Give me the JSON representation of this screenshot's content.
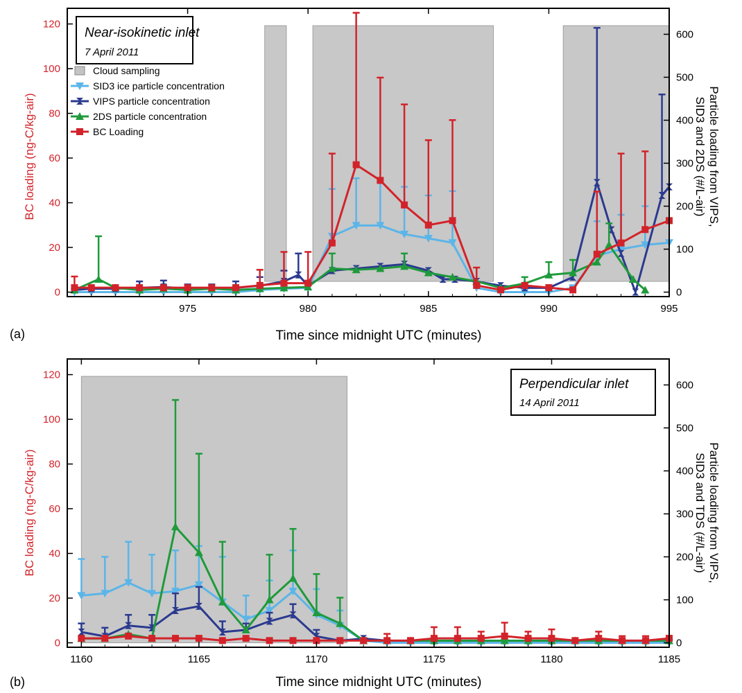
{
  "chart_data": [
    {
      "type": "line",
      "panel_label": "(a)",
      "annotation": {
        "line1": "Near-isokinetic inlet",
        "line2": "7 April 2011"
      },
      "xlabel": "Time since midnight UTC (minutes)",
      "ylabel": "BC loading (ng-C/kg-air)",
      "ylabel_right_line1": "Particle loading from VIPS,",
      "ylabel_right_line2": "SID3 and 2DS (#/L-air)",
      "xlim": [
        970,
        995
      ],
      "ylim": [
        -2,
        127
      ],
      "ylim_right": [
        -10.4,
        660.4
      ],
      "x_ticks": [
        975,
        980,
        985,
        990,
        995
      ],
      "y_ticks": [
        0,
        20,
        40,
        60,
        80,
        100,
        120
      ],
      "y_ticks_right": [
        0,
        100,
        200,
        300,
        400,
        500,
        600
      ],
      "legend": [
        {
          "label": "Cloud sampling",
          "color": "#c4c4c4",
          "marker": "rect"
        },
        {
          "label": "SID3 ice particle concentration",
          "color": "#5bb5e8",
          "marker": "tri-down"
        },
        {
          "label": "VIPS particle concentration",
          "color": "#2b3a8f",
          "marker": "bowtie"
        },
        {
          "label": "2DS particle concentration",
          "color": "#1f9a3b",
          "marker": "tri-up"
        },
        {
          "label": "BC Loading",
          "color": "#d2232a",
          "marker": "square"
        }
      ],
      "cloud_spans": [
        [
          978.2,
          979.1
        ],
        [
          980.2,
          987.7
        ],
        [
          990.6,
          995
        ]
      ],
      "series": [
        {
          "name": "SID3 ice particle concentration",
          "axis": "right",
          "color": "#5bb5e8",
          "marker": "tri-down",
          "x": [
            970.3,
            971,
            972,
            973,
            974,
            975,
            976,
            977,
            978,
            979,
            980,
            981,
            982,
            983,
            984,
            985,
            986,
            987,
            988,
            989,
            990,
            991,
            992,
            993,
            994,
            995
          ],
          "y": [
            0,
            0,
            0,
            0,
            0,
            0,
            0,
            0,
            5,
            8,
            10,
            130,
            155,
            155,
            135,
            125,
            115,
            10,
            0,
            0,
            0,
            10,
            85,
            100,
            110,
            115
          ],
          "err": [
            0,
            0,
            0,
            0,
            0,
            0,
            0,
            0,
            0,
            0,
            0,
            110,
            110,
            110,
            110,
            100,
            120,
            0,
            0,
            0,
            0,
            0,
            80,
            80,
            90,
            0
          ]
        },
        {
          "name": "VIPS particle concentration",
          "axis": "right",
          "color": "#2b3a8f",
          "marker": "bowtie",
          "x": [
            970.3,
            971,
            972,
            973,
            974,
            975,
            976,
            977,
            978,
            979,
            979.6,
            980,
            981,
            982,
            983,
            984,
            985,
            985.6,
            986.1,
            987,
            988,
            989,
            990,
            991,
            992,
            992.6,
            993,
            993.6,
            994.7,
            995
          ],
          "y": [
            5,
            8,
            8,
            10,
            12,
            8,
            8,
            10,
            15,
            25,
            40,
            15,
            50,
            55,
            60,
            65,
            50,
            30,
            30,
            25,
            15,
            10,
            10,
            35,
            255,
            145,
            90,
            0,
            225,
            245
          ],
          "err": [
            0,
            0,
            0,
            15,
            15,
            10,
            10,
            15,
            20,
            25,
            50,
            0,
            0,
            0,
            0,
            0,
            0,
            0,
            0,
            0,
            0,
            0,
            0,
            0,
            360,
            0,
            0,
            0,
            235,
            0
          ]
        },
        {
          "name": "2DS particle concentration",
          "axis": "right",
          "color": "#1f9a3b",
          "marker": "tri-up",
          "x": [
            970.3,
            971.3,
            972,
            973,
            974,
            975,
            976,
            977,
            978,
            979,
            980,
            981,
            982,
            983,
            984,
            985,
            986,
            987,
            988,
            989,
            990,
            991,
            992,
            992.5,
            993.5,
            994
          ],
          "y": [
            5,
            30,
            10,
            5,
            8,
            5,
            8,
            5,
            8,
            10,
            12,
            55,
            52,
            55,
            60,
            45,
            35,
            25,
            10,
            20,
            40,
            45,
            70,
            110,
            30,
            5
          ],
          "err": [
            0,
            100,
            0,
            0,
            0,
            0,
            0,
            0,
            0,
            0,
            0,
            35,
            0,
            0,
            30,
            0,
            0,
            0,
            0,
            15,
            30,
            30,
            0,
            50,
            0,
            0
          ]
        },
        {
          "name": "BC Loading",
          "axis": "left",
          "color": "#d2232a",
          "marker": "square",
          "x": [
            970.3,
            971,
            972,
            973,
            974,
            975,
            976,
            977,
            978,
            979,
            980,
            981,
            982,
            983,
            984,
            985,
            986,
            987,
            988,
            989,
            990,
            991,
            992,
            993,
            994,
            995
          ],
          "y": [
            2,
            2,
            2,
            2,
            2,
            2,
            2,
            2,
            3,
            4,
            4,
            22,
            57,
            50,
            39,
            30,
            32,
            3,
            1,
            3,
            2,
            1,
            17,
            22,
            28,
            32
          ],
          "err": [
            5,
            0,
            0,
            0,
            0,
            0,
            0,
            0,
            7,
            14,
            14,
            40,
            68,
            46,
            45,
            38,
            45,
            8,
            0,
            0,
            0,
            0,
            28,
            40,
            35,
            0
          ]
        }
      ]
    },
    {
      "type": "line",
      "panel_label": "(b)",
      "annotation": {
        "line1": "Perpendicular inlet",
        "line2": "14 April 2011"
      },
      "xlabel": "Time since midnight UTC (minutes)",
      "ylabel": "BC loading (ng-C/kg-air)",
      "ylabel_right_line1": "Particle loading from VIPS,",
      "ylabel_right_line2": "SID3 and TDS (#/L-air)",
      "xlim": [
        1159.4,
        1185
      ],
      "ylim": [
        -2,
        127
      ],
      "ylim_right": [
        -10.4,
        660.4
      ],
      "x_ticks": [
        1160,
        1165,
        1170,
        1175,
        1180,
        1185
      ],
      "y_ticks": [
        0,
        20,
        40,
        60,
        80,
        100,
        120
      ],
      "y_ticks_right": [
        0,
        100,
        200,
        300,
        400,
        500,
        600
      ],
      "cloud_spans": [
        [
          1160,
          1171.3
        ]
      ],
      "series": [
        {
          "name": "SID3 ice particle concentration",
          "axis": "right",
          "color": "#5bb5e8",
          "marker": "tri-down",
          "x": [
            1160,
            1161,
            1162,
            1163,
            1164,
            1165,
            1166,
            1167,
            1168,
            1169,
            1170,
            1171,
            1172,
            1173,
            1174,
            1175,
            1176,
            1177,
            1178,
            1179,
            1180,
            1181,
            1182,
            1183,
            1184,
            1185
          ],
          "y": [
            110,
            115,
            140,
            115,
            120,
            135,
            95,
            55,
            75,
            120,
            65,
            40,
            5,
            0,
            0,
            0,
            0,
            0,
            0,
            0,
            0,
            0,
            0,
            0,
            0,
            0
          ],
          "err": [
            85,
            85,
            95,
            90,
            95,
            90,
            105,
            55,
            70,
            95,
            60,
            35,
            0,
            0,
            0,
            0,
            0,
            0,
            0,
            0,
            0,
            0,
            0,
            0,
            0,
            0
          ]
        },
        {
          "name": "VIPS particle concentration",
          "axis": "right",
          "color": "#2b3a8f",
          "marker": "bowtie",
          "x": [
            1160,
            1161,
            1162,
            1163,
            1164,
            1165,
            1166,
            1167,
            1168,
            1169,
            1170,
            1171,
            1172,
            1173
          ],
          "y": [
            25,
            15,
            40,
            35,
            75,
            85,
            25,
            30,
            50,
            65,
            15,
            5,
            10,
            5
          ],
          "err": [
            20,
            20,
            25,
            30,
            40,
            45,
            25,
            15,
            20,
            25,
            15,
            0,
            0,
            0
          ]
        },
        {
          "name": "2DS particle concentration",
          "axis": "right",
          "color": "#1f9a3b",
          "marker": "tri-up",
          "x": [
            1160,
            1161,
            1162,
            1163,
            1164,
            1165,
            1166,
            1167,
            1168,
            1169,
            1170,
            1171,
            1172,
            1173,
            1174,
            1175,
            1176,
            1177,
            1178,
            1179,
            1180,
            1181,
            1182,
            1183,
            1184,
            1185
          ],
          "y": [
            10,
            10,
            20,
            10,
            270,
            210,
            95,
            30,
            100,
            150,
            70,
            45,
            5,
            5,
            5,
            5,
            5,
            5,
            5,
            5,
            5,
            5,
            5,
            5,
            5,
            5
          ],
          "err": [
            0,
            0,
            0,
            0,
            295,
            230,
            140,
            0,
            105,
            115,
            90,
            60,
            0,
            0,
            0,
            0,
            0,
            0,
            0,
            0,
            0,
            0,
            0,
            0,
            0,
            0
          ]
        },
        {
          "name": "BC Loading",
          "axis": "left",
          "color": "#d2232a",
          "marker": "square",
          "x": [
            1160,
            1161,
            1162,
            1163,
            1164,
            1165,
            1166,
            1167,
            1168,
            1169,
            1170,
            1171,
            1172,
            1173,
            1174,
            1175,
            1176,
            1177,
            1178,
            1179,
            1180,
            1181,
            1182,
            1183,
            1184,
            1185
          ],
          "y": [
            2,
            2,
            3,
            2,
            2,
            2,
            1,
            2,
            1,
            1,
            1,
            1,
            1,
            1,
            1,
            2,
            2,
            2,
            3,
            2,
            2,
            1,
            2,
            1,
            1,
            2
          ],
          "err": [
            0,
            0,
            0,
            0,
            0,
            0,
            0,
            0,
            0,
            0,
            0,
            0,
            0,
            3,
            0,
            5,
            5,
            3,
            6,
            3,
            4,
            0,
            3,
            2,
            2,
            0
          ]
        }
      ]
    }
  ]
}
